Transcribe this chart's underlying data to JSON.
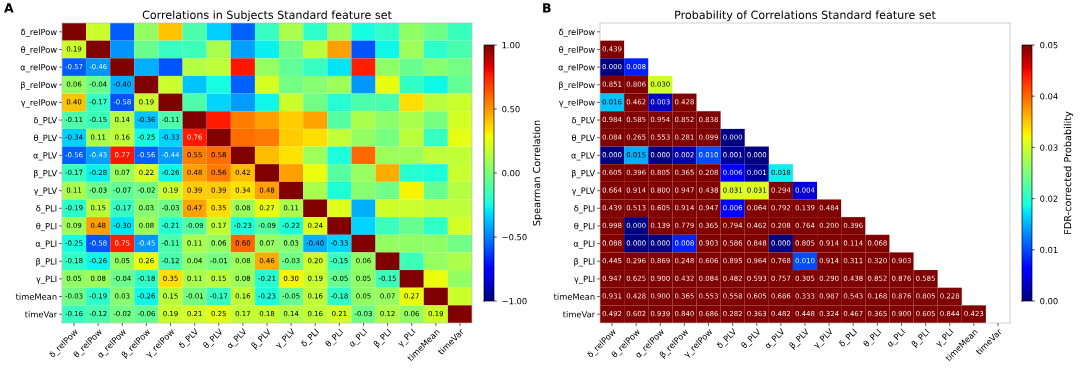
{
  "chart_data": [
    {
      "type": "heatmap",
      "title": "Correlations in Subjects Standard feature set",
      "clabel": "Spearman Correlation",
      "annotations": [
        "A"
      ],
      "categories": [
        "δ_relPow",
        "θ_relPow",
        "α_relPow",
        "β_relPow",
        "γ_relPow",
        "δ_PLV",
        "θ_PLV",
        "α_PLV",
        "β_PLV",
        "γ_PLV",
        "δ_PLI",
        "θ_PLI",
        "α_PLI",
        "β_PLI",
        "γ_PLI",
        "timeMean",
        "timeVar"
      ],
      "y_categories": [
        "δ_relPow",
        "θ_relPow",
        "α_relPow",
        "β_relPow",
        "γ_relPow",
        "δ_PLV",
        "θ_PLV",
        "α_PLV",
        "β_PLV",
        "γ_PLV",
        "δ_PLI",
        "θ_PLI",
        "α_PLI",
        "β_PLI",
        "γ_PLI",
        "timeMean",
        "timeVar"
      ],
      "clim": [
        -1,
        1
      ],
      "cticks": [
        {
          "value": -1,
          "label": "−1.00"
        },
        {
          "value": -0.5,
          "label": "−0.50"
        },
        {
          "value": 0,
          "label": "0.00"
        },
        {
          "value": 0.5,
          "label": "0.50"
        },
        {
          "value": 1,
          "label": "1.00"
        }
      ],
      "cells": [
        [
          1,
          0.19,
          -0.57,
          0.06,
          0.4,
          -0.11,
          -0.34,
          -0.56,
          -0.17,
          0.11,
          -0.19,
          0.09,
          -0.25,
          -0.18,
          0.05,
          -0.03,
          -0.16
        ],
        [
          0.19,
          1,
          -0.46,
          -0.04,
          -0.17,
          -0.15,
          0.11,
          -0.43,
          -0.28,
          -0.03,
          0.15,
          0.48,
          -0.58,
          -0.26,
          0.08,
          -0.19,
          -0.12
        ],
        [
          -0.57,
          -0.46,
          1,
          -0.4,
          -0.58,
          0.14,
          0.16,
          0.77,
          0.07,
          -0.07,
          -0.17,
          -0.3,
          0.75,
          0.05,
          -0.04,
          0.03,
          -0.02
        ],
        [
          0.06,
          -0.04,
          -0.4,
          1,
          0.19,
          -0.36,
          -0.25,
          -0.56,
          0.22,
          -0.02,
          0.03,
          0.08,
          -0.45,
          0.26,
          -0.18,
          -0.26,
          -0.06
        ],
        [
          0.4,
          -0.17,
          -0.58,
          0.19,
          1,
          -0.11,
          -0.33,
          -0.44,
          -0.26,
          0.19,
          -0.03,
          -0.21,
          -0.11,
          -0.12,
          0.35,
          0.15,
          0.19
        ],
        [
          -0.11,
          -0.15,
          0.14,
          -0.36,
          -0.11,
          1,
          0.76,
          0.55,
          0.48,
          0.39,
          0.47,
          -0.09,
          0.11,
          0.04,
          0.11,
          -0.01,
          0.21
        ],
        [
          -0.34,
          0.11,
          0.16,
          -0.25,
          -0.33,
          0.76,
          1,
          0.58,
          0.56,
          0.39,
          0.35,
          0.17,
          0.06,
          -0.01,
          0.15,
          -0.17,
          0.25
        ],
        [
          -0.56,
          -0.43,
          0.77,
          -0.56,
          -0.44,
          0.55,
          0.58,
          1,
          0.42,
          0.34,
          0.08,
          -0.23,
          0.6,
          0.08,
          0.08,
          0.16,
          0.17
        ],
        [
          -0.17,
          -0.28,
          0.07,
          0.22,
          -0.26,
          0.48,
          0.56,
          0.42,
          1,
          0.48,
          0.27,
          -0.09,
          0.07,
          0.46,
          -0.21,
          -0.23,
          0.18
        ],
        [
          0.11,
          -0.03,
          -0.07,
          -0.02,
          0.19,
          0.39,
          0.39,
          0.34,
          0.48,
          1,
          0.11,
          -0.22,
          0.03,
          -0.03,
          0.3,
          -0.05,
          0.14
        ],
        [
          -0.19,
          0.15,
          -0.17,
          0.03,
          -0.03,
          0.47,
          0.35,
          0.08,
          0.27,
          0.11,
          1,
          0.24,
          -0.4,
          0.2,
          0.19,
          0.16,
          0.16
        ],
        [
          0.09,
          0.48,
          -0.3,
          0.08,
          -0.21,
          -0.09,
          0.17,
          -0.23,
          -0.09,
          -0.22,
          0.24,
          1,
          -0.33,
          -0.15,
          -0.05,
          -0.18,
          0.21
        ],
        [
          -0.25,
          -0.58,
          0.75,
          -0.45,
          -0.11,
          0.11,
          0.06,
          0.6,
          0.07,
          0.03,
          -0.4,
          -0.33,
          1,
          0.06,
          0.05,
          0.05,
          -0.03
        ],
        [
          -0.18,
          -0.26,
          0.05,
          0.26,
          -0.12,
          0.04,
          -0.01,
          0.08,
          0.46,
          -0.03,
          0.2,
          -0.15,
          0.06,
          1,
          -0.15,
          0.07,
          0.12
        ],
        [
          0.05,
          0.08,
          -0.04,
          -0.18,
          0.35,
          0.11,
          0.15,
          0.08,
          -0.21,
          0.3,
          0.19,
          -0.05,
          0.05,
          -0.15,
          1,
          0.27,
          0.06
        ],
        [
          -0.03,
          -0.19,
          0.03,
          -0.26,
          0.15,
          -0.01,
          -0.17,
          0.16,
          -0.23,
          -0.05,
          0.16,
          -0.18,
          0.05,
          0.07,
          0.27,
          1,
          0.19
        ],
        [
          -0.16,
          -0.12,
          -0.02,
          -0.06,
          0.19,
          0.21,
          0.25,
          0.17,
          0.18,
          0.14,
          0.16,
          0.21,
          -0.03,
          0.12,
          0.06,
          0.19,
          1
        ]
      ],
      "cell_labels": [
        [
          null,
          null,
          null,
          null,
          null,
          null,
          null,
          null,
          null,
          null,
          null,
          null,
          null,
          null,
          null,
          null,
          null
        ],
        [
          "0.19",
          null,
          null,
          null,
          null,
          null,
          null,
          null,
          null,
          null,
          null,
          null,
          null,
          null,
          null,
          null,
          null
        ],
        [
          "-0.57",
          "-0.46",
          null,
          null,
          null,
          null,
          null,
          null,
          null,
          null,
          null,
          null,
          null,
          null,
          null,
          null,
          null
        ],
        [
          "0.06",
          "-0.04",
          "-0.40",
          null,
          null,
          null,
          null,
          null,
          null,
          null,
          null,
          null,
          null,
          null,
          null,
          null,
          null
        ],
        [
          "0.40",
          "-0.17",
          "-0.58",
          "0.19",
          null,
          null,
          null,
          null,
          null,
          null,
          null,
          null,
          null,
          null,
          null,
          null,
          null
        ],
        [
          "-0.11",
          "-0.15",
          "0.14",
          "-0.36",
          "-0.11",
          null,
          null,
          null,
          null,
          null,
          null,
          null,
          null,
          null,
          null,
          null,
          null
        ],
        [
          "-0.34",
          "0.11",
          "0.16",
          "-0.25",
          "-0.33",
          "0.76",
          null,
          null,
          null,
          null,
          null,
          null,
          null,
          null,
          null,
          null,
          null
        ],
        [
          "-0.56",
          "-0.43",
          "0.77",
          "-0.56",
          "-0.44",
          "0.55",
          "0.58",
          null,
          null,
          null,
          null,
          null,
          null,
          null,
          null,
          null,
          null
        ],
        [
          "-0.17",
          "-0.28",
          "0.07",
          "0.22",
          "-0.26",
          "0.48",
          "0.56",
          "0.42",
          null,
          null,
          null,
          null,
          null,
          null,
          null,
          null,
          null
        ],
        [
          "0.11",
          "-0.03",
          "-0.07",
          "-0.02",
          "0.19",
          "0.39",
          "0.39",
          "0.34",
          "0.48",
          null,
          null,
          null,
          null,
          null,
          null,
          null,
          null
        ],
        [
          "-0.19",
          "0.15",
          "-0.17",
          "0.03",
          "-0.03",
          "0.47",
          "0.35",
          "0.08",
          "0.27",
          "0.11",
          null,
          null,
          null,
          null,
          null,
          null,
          null
        ],
        [
          "0.09",
          "0.48",
          "-0.30",
          "0.08",
          "-0.21",
          "-0.09",
          "0.17",
          "-0.23",
          "-0.09",
          "-0.22",
          "0.24",
          null,
          null,
          null,
          null,
          null,
          null
        ],
        [
          "-0.25",
          "-0.58",
          "0.75",
          "-0.45",
          "-0.11",
          "0.11",
          "0.06",
          "0.60",
          "0.07",
          "0.03",
          "-0.40",
          "-0.33",
          null,
          null,
          null,
          null,
          null
        ],
        [
          "-0.18",
          "-0.26",
          "0.05",
          "0.26",
          "-0.12",
          "0.04",
          "-0.01",
          "0.08",
          "0.46",
          "-0.03",
          "0.20",
          "-0.15",
          "0.06",
          null,
          null,
          null,
          null
        ],
        [
          "0.05",
          "0.08",
          "-0.04",
          "-0.18",
          "0.35",
          "0.11",
          "0.15",
          "0.08",
          "-0.21",
          "0.30",
          "0.19",
          "-0.05",
          "0.05",
          "-0.15",
          null,
          null,
          null
        ],
        [
          "-0.03",
          "-0.19",
          "0.03",
          "-0.26",
          "0.15",
          "-0.01",
          "-0.17",
          "0.16",
          "-0.23",
          "-0.05",
          "0.16",
          "-0.18",
          "0.05",
          "0.07",
          "0.27",
          null,
          null
        ],
        [
          "-0.16",
          "-0.12",
          "-0.02",
          "-0.06",
          "0.19",
          "0.21",
          "0.25",
          "0.17",
          "0.18",
          "0.14",
          "0.16",
          "0.21",
          "-0.03",
          "0.12",
          "0.06",
          "0.19",
          null
        ]
      ]
    },
    {
      "type": "heatmap",
      "title": "Probability of Correlations Standard feature set",
      "clabel": "FDR-corrected Probability",
      "annotations": [
        "B"
      ],
      "categories": [
        "δ_relPow",
        "θ_relPow",
        "α_relPow",
        "β_relPow",
        "γ_relPow",
        "δ_PLV",
        "θ_PLV",
        "α_PLV",
        "β_PLV",
        "γ_PLV",
        "δ_PLI",
        "θ_PLI",
        "α_PLI",
        "β_PLI",
        "γ_PLI",
        "timeMean",
        "timeVar"
      ],
      "y_categories": [
        "δ_relPow",
        "θ_relPow",
        "α_relPow",
        "β_relPow",
        "γ_relPow",
        "δ_PLV",
        "θ_PLV",
        "α_PLV",
        "β_PLV",
        "γ_PLV",
        "δ_PLI",
        "θ_PLI",
        "α_PLI",
        "β_PLI",
        "γ_PLI",
        "timeMean",
        "timeVar"
      ],
      "clim": [
        0,
        0.05
      ],
      "cticks": [
        {
          "value": 0,
          "label": "0.00"
        },
        {
          "value": 0.01,
          "label": "0.01"
        },
        {
          "value": 0.02,
          "label": "0.02"
        },
        {
          "value": 0.03,
          "label": "0.03"
        },
        {
          "value": 0.04,
          "label": "0.04"
        },
        {
          "value": 0.05,
          "label": "0.05"
        }
      ],
      "cells": [
        [
          null,
          null,
          null,
          null,
          null,
          null,
          null,
          null,
          null,
          null,
          null,
          null,
          null,
          null,
          null,
          null,
          null
        ],
        [
          0.439,
          null,
          null,
          null,
          null,
          null,
          null,
          null,
          null,
          null,
          null,
          null,
          null,
          null,
          null,
          null,
          null
        ],
        [
          0.0,
          0.008,
          null,
          null,
          null,
          null,
          null,
          null,
          null,
          null,
          null,
          null,
          null,
          null,
          null,
          null,
          null
        ],
        [
          0.851,
          0.806,
          0.03,
          null,
          null,
          null,
          null,
          null,
          null,
          null,
          null,
          null,
          null,
          null,
          null,
          null,
          null
        ],
        [
          0.016,
          0.462,
          0.003,
          0.428,
          null,
          null,
          null,
          null,
          null,
          null,
          null,
          null,
          null,
          null,
          null,
          null,
          null
        ],
        [
          0.984,
          0.585,
          0.954,
          0.852,
          0.838,
          null,
          null,
          null,
          null,
          null,
          null,
          null,
          null,
          null,
          null,
          null,
          null
        ],
        [
          0.084,
          0.265,
          0.553,
          0.281,
          0.099,
          0.0,
          null,
          null,
          null,
          null,
          null,
          null,
          null,
          null,
          null,
          null,
          null
        ],
        [
          0.0,
          0.015,
          0.0,
          0.002,
          0.01,
          0.001,
          0.0,
          null,
          null,
          null,
          null,
          null,
          null,
          null,
          null,
          null,
          null
        ],
        [
          0.605,
          0.396,
          0.805,
          0.365,
          0.208,
          0.006,
          0.001,
          0.018,
          null,
          null,
          null,
          null,
          null,
          null,
          null,
          null,
          null
        ],
        [
          0.664,
          0.914,
          0.8,
          0.947,
          0.438,
          0.031,
          0.031,
          0.294,
          0.004,
          null,
          null,
          null,
          null,
          null,
          null,
          null,
          null
        ],
        [
          0.439,
          0.513,
          0.605,
          0.914,
          0.947,
          0.006,
          0.064,
          0.792,
          0.139,
          0.484,
          null,
          null,
          null,
          null,
          null,
          null,
          null
        ],
        [
          0.998,
          0.0,
          0.139,
          0.779,
          0.365,
          0.794,
          0.462,
          0.208,
          0.764,
          0.2,
          0.396,
          null,
          null,
          null,
          null,
          null,
          null
        ],
        [
          0.088,
          0.0,
          0.0,
          0.008,
          0.903,
          0.586,
          0.848,
          0.0,
          0.805,
          0.914,
          0.114,
          0.068,
          null,
          null,
          null,
          null,
          null
        ],
        [
          0.445,
          0.296,
          0.869,
          0.248,
          0.606,
          0.895,
          0.964,
          0.768,
          0.01,
          0.914,
          0.311,
          0.32,
          0.903,
          null,
          null,
          null,
          null
        ],
        [
          0.947,
          0.625,
          0.9,
          0.432,
          0.084,
          0.482,
          0.593,
          0.757,
          0.305,
          0.29,
          0.438,
          0.852,
          0.876,
          0.585,
          null,
          null,
          null
        ],
        [
          0.931,
          0.428,
          0.9,
          0.365,
          0.553,
          0.558,
          0.605,
          0.686,
          0.333,
          0.987,
          0.543,
          0.168,
          0.876,
          0.805,
          0.228,
          null,
          null
        ],
        [
          0.492,
          0.602,
          0.939,
          0.84,
          0.686,
          0.282,
          0.363,
          0.482,
          0.448,
          0.324,
          0.467,
          0.365,
          0.9,
          0.605,
          0.844,
          0.423,
          null
        ]
      ],
      "cell_labels": [
        [
          null,
          null,
          null,
          null,
          null,
          null,
          null,
          null,
          null,
          null,
          null,
          null,
          null,
          null,
          null,
          null,
          null
        ],
        [
          "0.439",
          null,
          null,
          null,
          null,
          null,
          null,
          null,
          null,
          null,
          null,
          null,
          null,
          null,
          null,
          null,
          null
        ],
        [
          "0.000",
          "0.008",
          null,
          null,
          null,
          null,
          null,
          null,
          null,
          null,
          null,
          null,
          null,
          null,
          null,
          null,
          null
        ],
        [
          "0.851",
          "0.806",
          "0.030",
          null,
          null,
          null,
          null,
          null,
          null,
          null,
          null,
          null,
          null,
          null,
          null,
          null,
          null
        ],
        [
          "0.016",
          "0.462",
          "0.003",
          "0.428",
          null,
          null,
          null,
          null,
          null,
          null,
          null,
          null,
          null,
          null,
          null,
          null,
          null
        ],
        [
          "0.984",
          "0.585",
          "0.954",
          "0.852",
          "0.838",
          null,
          null,
          null,
          null,
          null,
          null,
          null,
          null,
          null,
          null,
          null,
          null
        ],
        [
          "0.084",
          "0.265",
          "0.553",
          "0.281",
          "0.099",
          "0.000",
          null,
          null,
          null,
          null,
          null,
          null,
          null,
          null,
          null,
          null,
          null
        ],
        [
          "0.000",
          "0.015",
          "0.000",
          "0.002",
          "0.010",
          "0.001",
          "0.000",
          null,
          null,
          null,
          null,
          null,
          null,
          null,
          null,
          null,
          null
        ],
        [
          "0.605",
          "0.396",
          "0.805",
          "0.365",
          "0.208",
          "0.006",
          "0.001",
          "0.018",
          null,
          null,
          null,
          null,
          null,
          null,
          null,
          null,
          null
        ],
        [
          "0.664",
          "0.914",
          "0.800",
          "0.947",
          "0.438",
          "0.031",
          "0.031",
          "0.294",
          "0.004",
          null,
          null,
          null,
          null,
          null,
          null,
          null,
          null
        ],
        [
          "0.439",
          "0.513",
          "0.605",
          "0.914",
          "0.947",
          "0.006",
          "0.064",
          "0.792",
          "0.139",
          "0.484",
          null,
          null,
          null,
          null,
          null,
          null,
          null
        ],
        [
          "0.998",
          "0.000",
          "0.139",
          "0.779",
          "0.365",
          "0.794",
          "0.462",
          "0.208",
          "0.764",
          "0.200",
          "0.396",
          null,
          null,
          null,
          null,
          null,
          null
        ],
        [
          "0.088",
          "0.000",
          "0.000",
          "0.008",
          "0.903",
          "0.586",
          "0.848",
          "0.000",
          "0.805",
          "0.914",
          "0.114",
          "0.068",
          null,
          null,
          null,
          null,
          null
        ],
        [
          "0.445",
          "0.296",
          "0.869",
          "0.248",
          "0.606",
          "0.895",
          "0.964",
          "0.768",
          "0.010",
          "0.914",
          "0.311",
          "0.320",
          "0.903",
          null,
          null,
          null,
          null
        ],
        [
          "0.947",
          "0.625",
          "0.900",
          "0.432",
          "0.084",
          "0.482",
          "0.593",
          "0.757",
          "0.305",
          "0.290",
          "0.438",
          "0.852",
          "0.876",
          "0.585",
          null,
          null,
          null
        ],
        [
          "0.931",
          "0.428",
          "0.900",
          "0.365",
          "0.553",
          "0.558",
          "0.605",
          "0.686",
          "0.333",
          "0.987",
          "0.543",
          "0.168",
          "0.876",
          "0.805",
          "0.228",
          null,
          null
        ],
        [
          "0.492",
          "0.602",
          "0.939",
          "0.840",
          "0.686",
          "0.282",
          "0.363",
          "0.482",
          "0.448",
          "0.324",
          "0.467",
          "0.365",
          "0.900",
          "0.605",
          "0.844",
          "0.423",
          null
        ]
      ]
    }
  ]
}
